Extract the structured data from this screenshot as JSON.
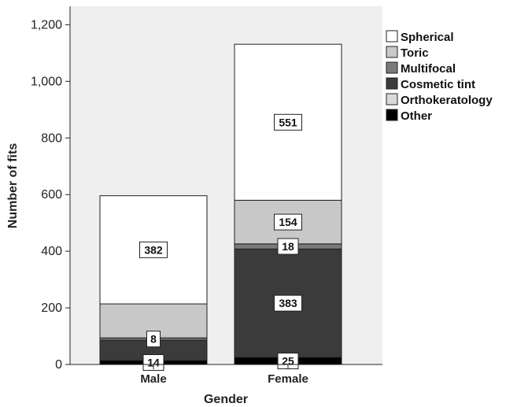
{
  "chart_data": {
    "type": "bar",
    "stacked": true,
    "categories": [
      "Male",
      "Female"
    ],
    "xlabel": "Gender",
    "ylabel": "Number of fits",
    "ylim": [
      0,
      1200
    ],
    "yticks": [
      0,
      200,
      400,
      600,
      800,
      1000,
      1200
    ],
    "ytick_labels": [
      "0",
      "200",
      "400",
      "600",
      "800",
      "1,000",
      "1,200"
    ],
    "legend_position": "top-right",
    "series": [
      {
        "name": "Other",
        "color": "#000000",
        "values": [
          14,
          25
        ],
        "data_labels": [
          "14",
          "25"
        ]
      },
      {
        "name": "Orthokeratology",
        "color": "#d9d9d9",
        "values": [
          0,
          0
        ],
        "data_labels": [
          null,
          null
        ]
      },
      {
        "name": "Cosmetic tint",
        "color": "#3b3b3b",
        "values": [
          72,
          383
        ],
        "data_labels": [
          null,
          "383"
        ]
      },
      {
        "name": "Multifocal",
        "color": "#7a7a7a",
        "values": [
          8,
          18
        ],
        "data_labels": [
          "8",
          "18"
        ]
      },
      {
        "name": "Toric",
        "color": "#c8c8c8",
        "values": [
          120,
          154
        ],
        "data_labels": [
          null,
          "154"
        ]
      },
      {
        "name": "Spherical",
        "color": "#ffffff",
        "values": [
          382,
          551
        ],
        "data_labels": [
          "382",
          "551"
        ]
      }
    ],
    "legend_order": [
      "Spherical",
      "Toric",
      "Multifocal",
      "Cosmetic tint",
      "Orthokeratology",
      "Other"
    ]
  }
}
